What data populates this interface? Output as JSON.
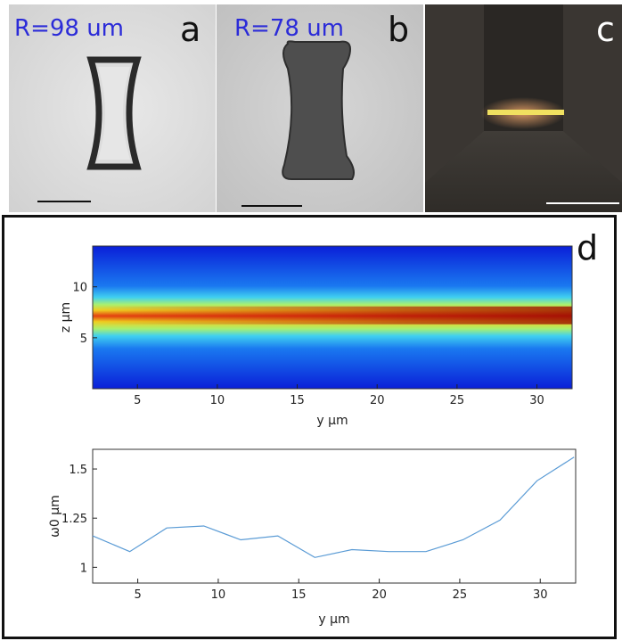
{
  "panels": {
    "a": {
      "letter": "a",
      "radius_label": "R=98 um"
    },
    "b": {
      "letter": "b",
      "radius_label": "R=78 um"
    },
    "c": {
      "letter": "c"
    },
    "d": {
      "letter": "d"
    }
  },
  "colors": {
    "label_blue": "#2b2bd8",
    "line_blue": "#5a9bd5",
    "beam_yellow": "#f0e060"
  },
  "chart_data": [
    {
      "type": "heatmap",
      "xlabel": "y μm",
      "ylabel": "z μm",
      "xlim": [
        2.2,
        32.2
      ],
      "ylim": [
        0,
        14
      ],
      "xticks": [
        5,
        10,
        15,
        20,
        25,
        30
      ],
      "yticks": [
        5,
        10
      ],
      "colormap": "jet",
      "beam_center_z": 7.2,
      "beam_intensity_trend": "increases toward larger y, peak near y=31"
    },
    {
      "type": "line",
      "xlabel": "y μm",
      "ylabel": "ω0 μm",
      "xlim": [
        2.2,
        32.2
      ],
      "ylim": [
        0.92,
        1.6
      ],
      "xticks": [
        5,
        10,
        15,
        20,
        25,
        30
      ],
      "yticks": [
        1,
        1.25,
        1.5
      ],
      "ytick_labels": [
        "1",
        "1.25",
        "1.5"
      ],
      "series": [
        {
          "x": [
            2.2,
            4.5,
            6.8,
            9.1,
            11.4,
            13.7,
            16.0,
            18.3,
            20.6,
            22.9,
            25.2,
            27.5,
            29.8,
            32.1
          ],
          "values": [
            1.16,
            1.08,
            1.2,
            1.21,
            1.14,
            1.16,
            1.05,
            1.09,
            1.08,
            1.08,
            1.14,
            1.24,
            1.44,
            1.56
          ]
        }
      ]
    }
  ]
}
